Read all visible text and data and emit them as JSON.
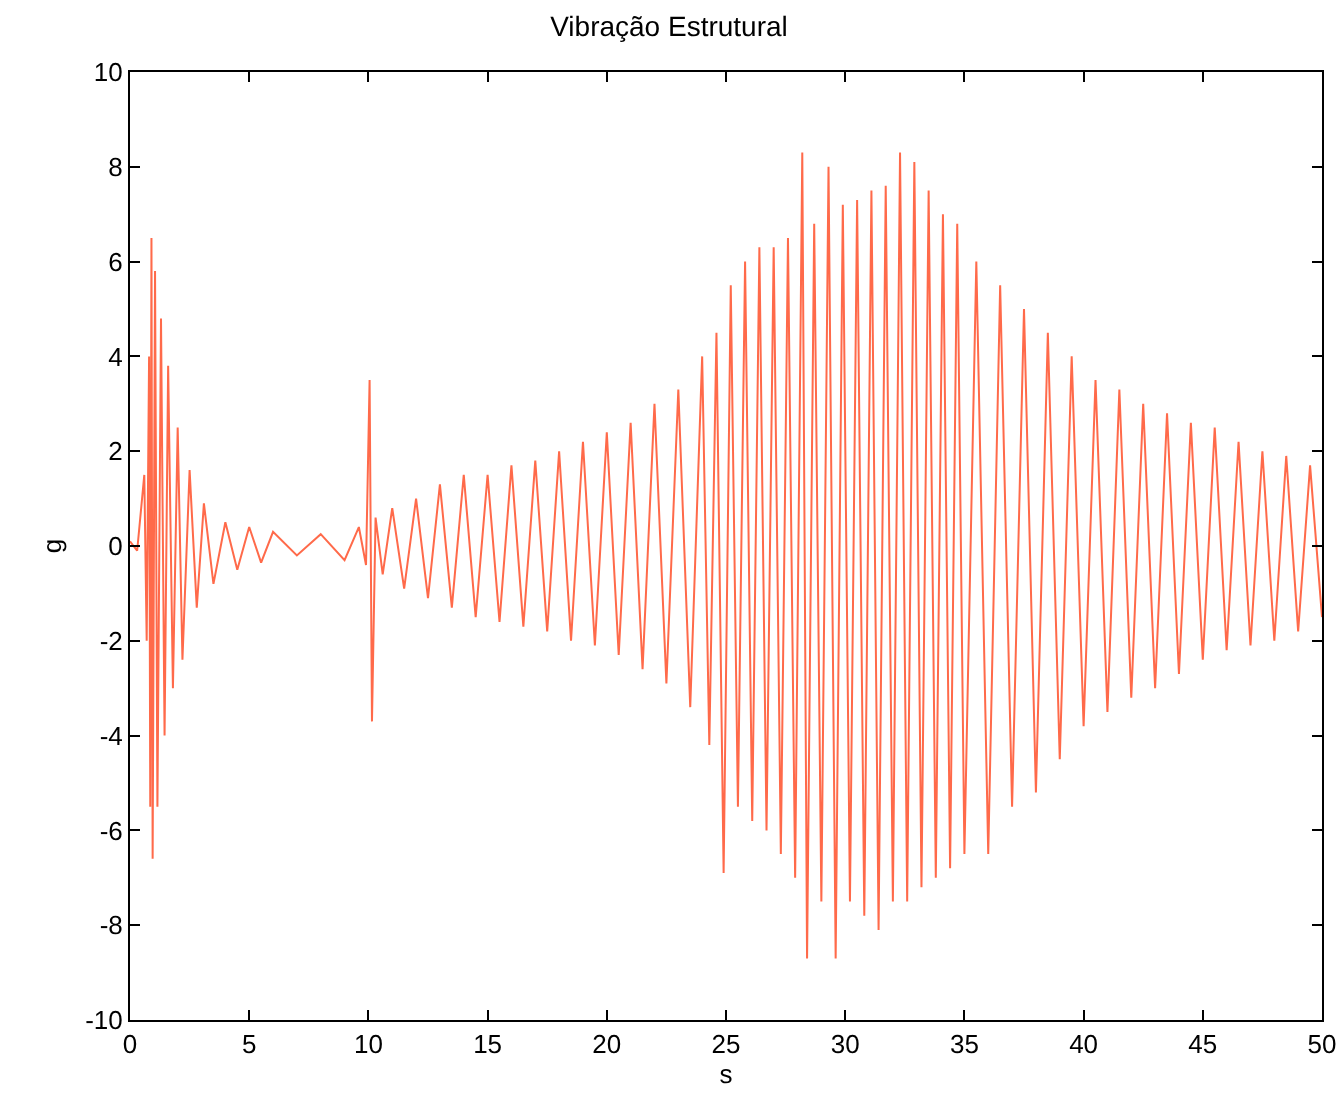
{
  "chart_data": {
    "type": "line",
    "title": "Vibração Estrutural",
    "xlabel": "s",
    "ylabel": "g",
    "xlim": [
      0,
      50
    ],
    "xticks": [
      0,
      5,
      10,
      15,
      20,
      25,
      30,
      35,
      40,
      45,
      50
    ],
    "ylim": [
      -10,
      10
    ],
    "yticks": [
      -10,
      -8,
      -6,
      -4,
      -2,
      0,
      2,
      4,
      6,
      8,
      10
    ],
    "grid": false,
    "marker": "none",
    "line_style": "solid",
    "series": [
      {
        "color": "#ff6a4a",
        "x": [
          0,
          0.3,
          0.6,
          0.7,
          0.8,
          0.85,
          0.9,
          0.95,
          1.05,
          1.15,
          1.3,
          1.45,
          1.6,
          1.8,
          2,
          2.2,
          2.5,
          2.8,
          3.1,
          3.5,
          4,
          4.5,
          5,
          5.5,
          6,
          7,
          8,
          9,
          9.6,
          9.9,
          10.05,
          10.15,
          10.3,
          10.6,
          11,
          11.5,
          12,
          12.5,
          13,
          13.5,
          14,
          14.5,
          15,
          15.5,
          16,
          16.5,
          17,
          17.5,
          18,
          18.5,
          19,
          19.5,
          20,
          20.5,
          21,
          21.5,
          22,
          22.5,
          23,
          23.5,
          24,
          24.3,
          24.6,
          24.9,
          25.2,
          25.5,
          25.8,
          26.1,
          26.4,
          26.7,
          27,
          27.3,
          27.6,
          27.9,
          28.2,
          28.4,
          28.7,
          29,
          29.3,
          29.6,
          29.9,
          30.2,
          30.5,
          30.8,
          31.1,
          31.4,
          31.7,
          32,
          32.3,
          32.6,
          32.9,
          33.2,
          33.5,
          33.8,
          34.1,
          34.4,
          34.7,
          35,
          35.5,
          36,
          36.5,
          37,
          37.5,
          38,
          38.5,
          39,
          39.5,
          40,
          40.5,
          41,
          41.5,
          42,
          42.5,
          43,
          43.5,
          44,
          44.5,
          45,
          45.5,
          46,
          46.5,
          47,
          47.5,
          48,
          48.5,
          49,
          49.5,
          50
        ],
        "values": [
          0.1,
          -0.1,
          1.5,
          -2,
          4,
          -5.5,
          6.5,
          -6.6,
          5.8,
          -5.5,
          4.8,
          -4,
          3.8,
          -3,
          2.5,
          -2.4,
          1.6,
          -1.3,
          0.9,
          -0.8,
          0.5,
          -0.5,
          0.4,
          -0.35,
          0.3,
          -0.2,
          0.25,
          -0.3,
          0.4,
          -0.4,
          3.5,
          -3.7,
          0.6,
          -0.6,
          0.8,
          -0.9,
          1,
          -1.1,
          1.3,
          -1.3,
          1.5,
          -1.5,
          1.5,
          -1.6,
          1.7,
          -1.7,
          1.8,
          -1.8,
          2,
          -2,
          2.2,
          -2.1,
          2.4,
          -2.3,
          2.6,
          -2.6,
          3,
          -2.9,
          3.3,
          -3.4,
          4,
          -4.2,
          4.5,
          -6.9,
          5.5,
          -5.5,
          6,
          -5.8,
          6.3,
          -6,
          6.3,
          -6.5,
          6.5,
          -7,
          8.3,
          -8.7,
          6.8,
          -7.5,
          8,
          -8.7,
          7.2,
          -7.5,
          7.3,
          -7.8,
          7.5,
          -8.1,
          7.6,
          -7.5,
          8.3,
          -7.5,
          8.1,
          -7.2,
          7.5,
          -7,
          7,
          -6.8,
          6.8,
          -6.5,
          6,
          -6.5,
          5.5,
          -5.5,
          5,
          -5.2,
          4.5,
          -4.5,
          4,
          -3.8,
          3.5,
          -3.5,
          3.3,
          -3.2,
          3,
          -3,
          2.8,
          -2.7,
          2.6,
          -2.4,
          2.5,
          -2.2,
          2.2,
          -2.1,
          2,
          -2,
          1.9,
          -1.8,
          1.7,
          -1.5
        ]
      }
    ]
  }
}
